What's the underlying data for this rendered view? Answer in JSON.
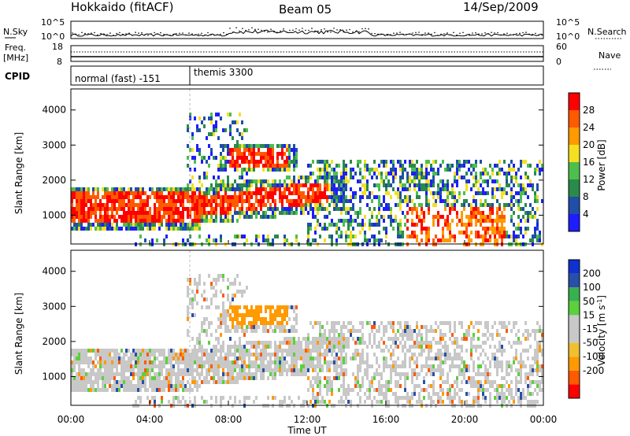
{
  "header": {
    "station": "Hokkaido (fitACF)",
    "beam": "Beam 05",
    "date": "14/Sep/2009"
  },
  "side_labels": {
    "nsky": "N.Sky",
    "nsearch": "N.Search",
    "freq_line1": "Freq.",
    "freq_line2": "[MHz]",
    "nave": "Nave",
    "cpid": "CPID"
  },
  "colors": {
    "power": [
      "#1d1dff",
      "#1f4fa8",
      "#2a8a4a",
      "#4dbf4d",
      "#f5e020",
      "#ff9a00",
      "#ff5a00",
      "#ff0000"
    ],
    "velocity": [
      "#ff0000",
      "#ff5a00",
      "#ff9a00",
      "#f0c030",
      "#c8c8c8",
      "#c8c8c8",
      "#5cd03c",
      "#38b050",
      "#2850a8",
      "#1030d0"
    ]
  },
  "chart_data": [
    {
      "type": "line",
      "name": "noise-panel",
      "left_ticks": [
        "10^5",
        "10^0"
      ],
      "right_ticks": [
        "10^5",
        "10^0"
      ],
      "x": [
        "00:00",
        "04:00",
        "08:00",
        "12:00",
        "16:00",
        "20:00",
        "00:00"
      ]
    },
    {
      "type": "line",
      "name": "freq-nave-panel",
      "left_ticks": [
        "18",
        "8"
      ],
      "right_ticks": [
        "60",
        "0"
      ]
    },
    {
      "type": "table",
      "name": "cpid-panel",
      "modes": [
        {
          "label": "normal (fast) -151",
          "start": "00:00",
          "end": "06:00"
        },
        {
          "label": "themis 3300",
          "start": "06:00",
          "end": "24:00"
        }
      ]
    },
    {
      "type": "heatmap",
      "name": "power-panel",
      "ylabel": "Slant Range [km]",
      "yticks": [
        "1000",
        "2000",
        "3000",
        "4000"
      ],
      "ylim": [
        180,
        4600
      ],
      "xlim": [
        "00:00",
        "24:00"
      ],
      "colorbar_label": "Power [dB]",
      "colorbar_ticks": [
        "4",
        "8",
        "12",
        "16",
        "20",
        "24",
        "28"
      ],
      "colorbar_range": [
        0,
        32
      ]
    },
    {
      "type": "heatmap",
      "name": "velocity-panel",
      "ylabel": "Slant Range [km]",
      "yticks": [
        "1000",
        "2000",
        "3000",
        "4000"
      ],
      "ylim": [
        180,
        4600
      ],
      "xlim": [
        "00:00",
        "24:00"
      ],
      "colorbar_label": "Velocity [m s",
      "colorbar_label_sup": "-1",
      "colorbar_label_end": "]",
      "colorbar_ticks": [
        "200",
        "100",
        "50",
        "15",
        "-15",
        "-50",
        "-100",
        "-200"
      ]
    }
  ],
  "xaxis": {
    "ticks": [
      "00:00",
      "04:00",
      "08:00",
      "12:00",
      "16:00",
      "20:00",
      "00:00"
    ],
    "label": "Time UT"
  }
}
